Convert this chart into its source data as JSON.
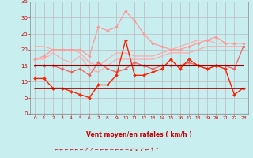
{
  "background_color": "#c8eef0",
  "grid_color": "#aaaaaa",
  "xlabel": "Vent moyen/en rafales ( km/h )",
  "xlabel_color": "#cc0000",
  "tick_color": "#cc0000",
  "xlim": [
    -0.5,
    23.5
  ],
  "ylim": [
    0,
    35
  ],
  "yticks": [
    0,
    5,
    10,
    15,
    20,
    25,
    30,
    35
  ],
  "xticks": [
    0,
    1,
    2,
    3,
    4,
    5,
    6,
    7,
    8,
    9,
    10,
    11,
    12,
    13,
    14,
    15,
    16,
    17,
    18,
    19,
    20,
    21,
    22,
    23
  ],
  "series": [
    {
      "y": [
        17,
        17,
        19,
        17,
        16,
        18,
        14,
        13,
        15,
        17,
        17,
        17,
        17,
        17,
        18,
        19,
        19,
        19,
        20,
        21,
        21,
        21,
        21,
        21
      ],
      "color": "#ffaaaa",
      "linewidth": 0.9,
      "marker": null,
      "zorder": 2
    },
    {
      "y": [
        21,
        21,
        20,
        20,
        20,
        19,
        16,
        15,
        17,
        19,
        19,
        18,
        18,
        18,
        19,
        20,
        21,
        22,
        23,
        23,
        22,
        22,
        22,
        22
      ],
      "color": "#ffaaaa",
      "linewidth": 0.9,
      "marker": null,
      "zorder": 2
    },
    {
      "y": [
        17,
        18,
        20,
        20,
        20,
        20,
        18,
        27,
        26,
        27,
        32,
        29,
        25,
        22,
        21,
        20,
        20,
        21,
        22,
        23,
        24,
        22,
        22,
        22
      ],
      "color": "#ff9999",
      "linewidth": 0.9,
      "marker": "D",
      "markersize": 2.0,
      "zorder": 3
    },
    {
      "y": [
        15,
        15,
        15,
        14,
        13,
        14,
        12,
        16,
        14,
        13,
        14,
        16,
        15,
        14,
        15,
        15,
        15,
        16,
        15,
        14,
        15,
        15,
        14,
        21
      ],
      "color": "#ee6666",
      "linewidth": 0.9,
      "marker": "D",
      "markersize": 2.0,
      "zorder": 3
    },
    {
      "y": [
        15,
        15,
        15,
        15,
        15,
        15,
        15,
        15,
        15,
        15,
        15,
        15,
        15,
        15,
        15,
        15,
        15,
        15,
        15,
        15,
        15,
        15,
        15,
        15
      ],
      "color": "#990000",
      "linewidth": 1.5,
      "marker": null,
      "zorder": 4
    },
    {
      "y": [
        11,
        11,
        8,
        8,
        7,
        6,
        5,
        9,
        9,
        12,
        23,
        12,
        12,
        13,
        14,
        17,
        14,
        17,
        15,
        14,
        15,
        14,
        6,
        8
      ],
      "color": "#ff2200",
      "linewidth": 1.0,
      "marker": "D",
      "markersize": 2.0,
      "zorder": 3
    },
    {
      "y": [
        8,
        8,
        8,
        8,
        8,
        8,
        8,
        8,
        8,
        8,
        8,
        8,
        8,
        8,
        8,
        8,
        8,
        8,
        8,
        8,
        8,
        8,
        8,
        8
      ],
      "color": "#990000",
      "linewidth": 1.2,
      "marker": null,
      "zorder": 4
    }
  ],
  "arrow_row": "← ← ← ← ← ← ↗ ↗ ← ← ← ← ← ← ← ↖ ↖ ↖ ← ↑ ↑",
  "arrow_color": "#cc0000"
}
